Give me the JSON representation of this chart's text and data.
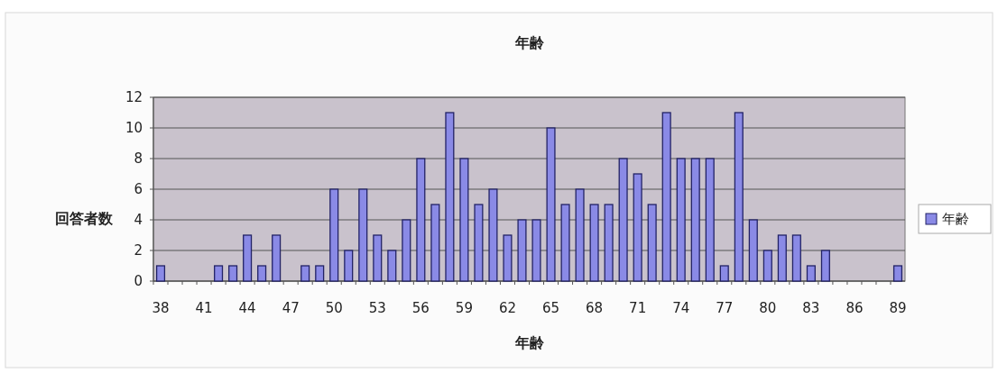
{
  "chart_data": {
    "type": "bar",
    "title": "年齢",
    "xlabel": "年齢",
    "ylabel": "回答者数",
    "categories": [
      "38",
      null,
      null,
      "41",
      null,
      null,
      "44",
      null,
      null,
      "47",
      null,
      null,
      "50",
      null,
      null,
      "53",
      null,
      null,
      "56",
      null,
      null,
      "59",
      null,
      null,
      "62",
      null,
      null,
      "65",
      null,
      null,
      "68",
      null,
      null,
      "71",
      null,
      null,
      "74",
      null,
      null,
      "77",
      null,
      null,
      "80",
      null,
      null,
      "83",
      null,
      null,
      "86",
      null,
      null,
      "89"
    ],
    "series": [
      {
        "name": "年齢",
        "color": "#8a8ae6",
        "values": [
          1,
          0,
          0,
          0,
          1,
          1,
          3,
          1,
          3,
          0,
          1,
          1,
          6,
          2,
          6,
          3,
          2,
          4,
          8,
          5,
          11,
          8,
          5,
          6,
          3,
          4,
          4,
          10,
          5,
          6,
          5,
          5,
          8,
          7,
          5,
          11,
          8,
          8,
          8,
          1,
          11,
          4,
          2,
          3,
          3,
          1,
          2,
          0,
          0,
          0,
          0,
          1
        ]
      }
    ],
    "ylim": [
      0,
      12
    ],
    "yticks": [
      0,
      2,
      4,
      6,
      8,
      10,
      12
    ],
    "grid": "y",
    "legend": "right"
  }
}
